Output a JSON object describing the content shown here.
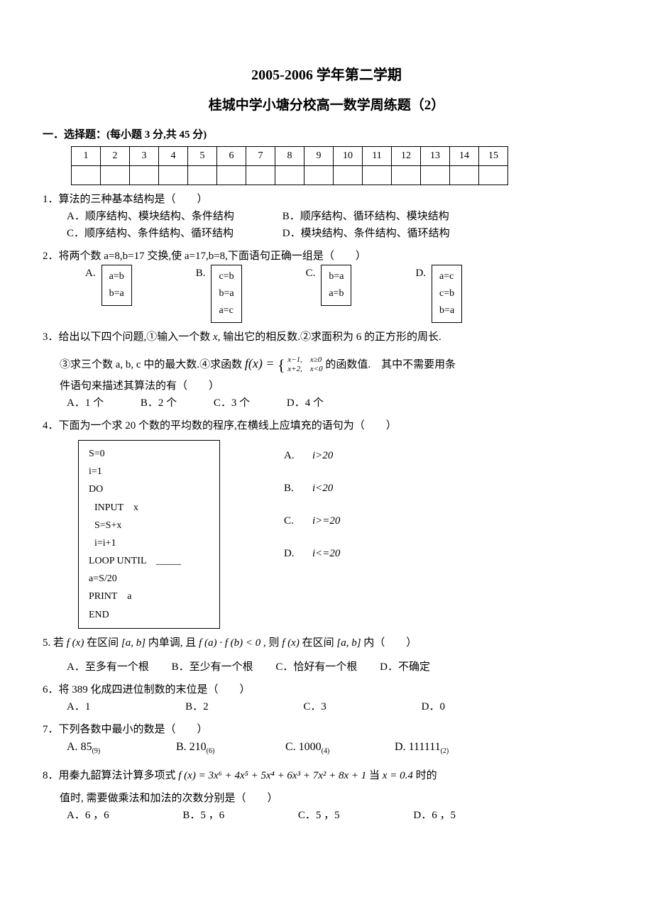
{
  "title_main": "2005-2006 学年第二学期",
  "title_sub": "桂城中学小塘分校高一数学周练题（2）",
  "section1_head": "一．选择题：(每小题 3 分,共 45 分)",
  "grid_cols": [
    "1",
    "2",
    "3",
    "4",
    "5",
    "6",
    "7",
    "8",
    "9",
    "10",
    "11",
    "12",
    "13",
    "14",
    "15"
  ],
  "q1": {
    "stem": "1．算法的三种基本结构是（　　）",
    "A": "A．顺序结构、模块结构、条件结构",
    "B": "B．顺序结构、循环结构、模块结构",
    "C": "C．顺序结构、条件结构、循环结构",
    "D": "D．模块结构、条件结构、循环结构"
  },
  "q2": {
    "stem": "2．将两个数 a=8,b=17 交换,使 a=17,b=8,下面语句正确一组是（　　）",
    "labA": "A.",
    "labB": "B.",
    "labC": "C.",
    "labD": "D.",
    "boxA_l1": "a=b",
    "boxA_l2": "b=a",
    "boxB_l1": "c=b",
    "boxB_l2": "b=a",
    "boxB_l3": "a=c",
    "boxC_l1": "b=a",
    "boxC_l2": "a=b",
    "boxD_l1": "a=c",
    "boxD_l2": "c=b",
    "boxD_l3": "b=a"
  },
  "q3": {
    "line1_pre": "3．给出以下四个问题,①输入一个数 ",
    "line1_x": "x",
    "line1_post": ", 输出它的相反数.②求面积为 6 的正方形的周长.",
    "line2_pre": "③求三个数 a, b, c 中的最大数.④求函数 ",
    "fx": "f(x) = ",
    "case_top_l": "x−1,",
    "case_top_r": "x≥0",
    "case_bot_l": "x+2,",
    "case_bot_r": "x<0",
    "line2_post": " 的函数值.　其中不需要用条",
    "line3": "件语句来描述其算法的有（　　）",
    "A": "A．1 个",
    "B": "B．2 个",
    "C": "C．3 个",
    "D": "D．4 个"
  },
  "q4": {
    "stem": "4．下面为一个求 20 个数的平均数的程序,在横线上应填充的语句为（　　）",
    "code": [
      "S=0",
      "i=1",
      "DO",
      " INPUT　x",
      " S=S+x",
      " i=i+1",
      "LOOP UNTIL　_____",
      "a=S/20",
      "PRINT　a",
      "END"
    ],
    "A_lab": "A.",
    "A": "i>20",
    "B_lab": "B.",
    "B": "i<20",
    "C_lab": "C.",
    "C": "i>=20",
    "D_lab": "D.",
    "D": "i<=20"
  },
  "q5": {
    "pre": "5. 若 ",
    "f1": "f (x)",
    "mid1": " 在区间 ",
    "intv": "[a, b]",
    "mid2": " 内单调, 且 ",
    "cond": "f (a) · f (b) < 0",
    "mid3": " , 则 ",
    "f2": "f (x)",
    "mid4": " 在区间 ",
    "intv2": "[a, b]",
    "tail": " 内（　　）",
    "A": "A．至多有一个根",
    "B": "B．至少有一个根",
    "C": "C．恰好有一个根",
    "D": "D．不确定"
  },
  "q6": {
    "stem": "6．将 389 化成四进位制数的末位是（　　）",
    "A": "A．1",
    "B": "B．2",
    "C": "C．3",
    "D": "D．0"
  },
  "q7": {
    "stem": "7．下列各数中最小的数是（　　）",
    "A_pre": "A.",
    "A_num": "85",
    "A_sub": "(9)",
    "B_pre": "B.",
    "B_num": "210",
    "B_sub": "(6)",
    "C_pre": "C.",
    "C_num": "1000",
    "C_sub": "(4)",
    "D_pre": "D.",
    "D_num": "111111",
    "D_sub": "(2)"
  },
  "q8": {
    "pre": "8．用秦九韶算法计算多项式 ",
    "poly": "f (x) = 3x⁶ + 4x⁵ + 5x⁴ + 6x³ + 7x² + 8x + 1",
    "mid": " 当 ",
    "xval": "x = 0.4",
    "post": " 时的",
    "line2": "值时, 需要做乘法和加法的次数分别是（　　）",
    "A": "A．6 ，6",
    "B": "B．5 ，6",
    "C": "C．5 ，5",
    "D": "D．6 ，5"
  }
}
